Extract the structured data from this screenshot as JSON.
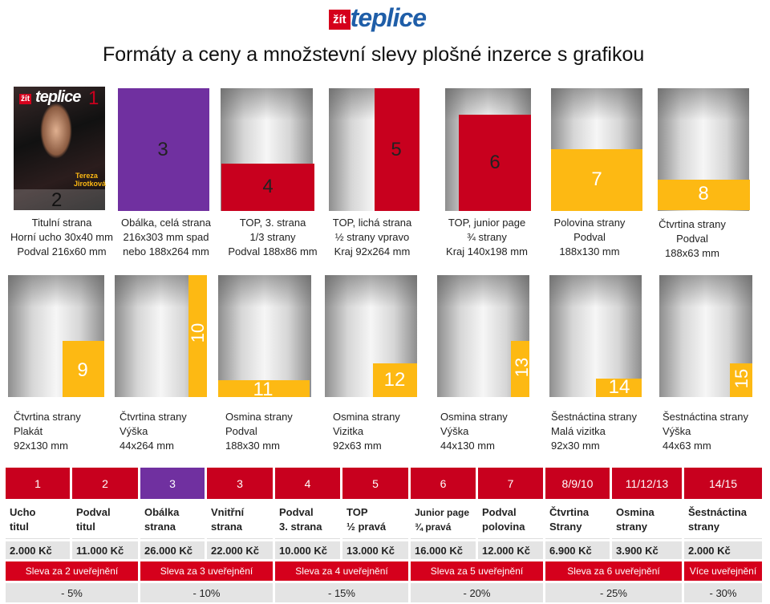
{
  "logo": {
    "brand": "žít",
    "name": "teplice"
  },
  "title": "Formáty a ceny a množstevní slevy plošné inzerce s grafikou",
  "cover": {
    "brand": "žít",
    "name": "teplice",
    "headline": [
      "Tereza",
      "Jirotková"
    ]
  },
  "formats_top": [
    {
      "numbers": [
        "1",
        "2"
      ],
      "caption": [
        "Titulní strana",
        "Horní ucho 30x40 mm",
        "Podval 216x60 mm"
      ]
    },
    {
      "numbers": [
        "3"
      ],
      "caption": [
        "Obálka, celá strana",
        "216x303 mm spad",
        "nebo 188x264 mm"
      ]
    },
    {
      "numbers": [
        "4"
      ],
      "caption": [
        "TOP, 3. strana",
        "1/3 strany",
        "Podval 188x86 mm"
      ]
    },
    {
      "numbers": [
        "5"
      ],
      "caption": [
        "TOP, lichá strana",
        "½ strany vpravo",
        "Kraj 92x264 mm"
      ]
    },
    {
      "numbers": [
        "6"
      ],
      "caption": [
        "TOP, junior page",
        "¾ strany",
        "Kraj 140x198 mm"
      ]
    },
    {
      "numbers": [
        "7"
      ],
      "caption": [
        "Polovina strany",
        "Podval",
        "188x130 mm"
      ]
    },
    {
      "numbers": [
        "8"
      ],
      "caption": [
        "Čtvrtina strany",
        "Podval",
        "188x63 mm"
      ]
    }
  ],
  "formats_bottom": [
    {
      "number": "9",
      "caption": [
        "Čtvrtina strany",
        "Plakát",
        "92x130 mm"
      ]
    },
    {
      "number": "10",
      "caption": [
        "Čtvrtina strany",
        "Výška",
        "44x264 mm"
      ]
    },
    {
      "number": "11",
      "caption": [
        "Osmina strany",
        "Podval",
        "188x30 mm"
      ]
    },
    {
      "number": "12",
      "caption": [
        "Osmina strany",
        "Vizitka",
        "92x63 mm"
      ]
    },
    {
      "number": "13",
      "caption": [
        "Osmina strany",
        "Výška",
        "44x130 mm"
      ]
    },
    {
      "number": "14",
      "caption": [
        "Šestnáctina strany",
        "Malá vizitka",
        "92x30 mm"
      ]
    },
    {
      "number": "15",
      "caption": [
        "Šestnáctina strany",
        "Výška",
        "44x63 mm"
      ]
    }
  ],
  "table": {
    "header": [
      "1",
      "2",
      "3",
      "3",
      "4",
      "5",
      "6",
      "7",
      "8/9/10",
      "11/12/13",
      "14/15"
    ],
    "names": [
      [
        "Ucho",
        "titul"
      ],
      [
        "Podval",
        "titul"
      ],
      [
        "Obálka",
        "strana"
      ],
      [
        "Vnitřní",
        "strana"
      ],
      [
        "Podval",
        "3. strana"
      ],
      [
        "TOP",
        "½ pravá"
      ],
      [
        "Junior page",
        "¾ pravá"
      ],
      [
        "Podval",
        "polovina"
      ],
      [
        "Čtvrtina",
        "Strany"
      ],
      [
        "Osmina",
        "strany"
      ],
      [
        "Šestnáctina",
        "strany"
      ]
    ],
    "prices": [
      "2.000 Kč",
      "11.000  Kč",
      "26.000 Kč",
      "22.000 Kč",
      "10.000 Kč",
      "13.000 Kč",
      "16.000 Kč",
      "12.000 Kč",
      "6.900 Kč",
      "3.900 Kč",
      "2.000 Kč"
    ],
    "discounts": [
      "Sleva za 2 uveřejnění",
      "Sleva za 3 uveřejnění",
      "Sleva za 4 uveřejnění",
      "Sleva za 5 uveřejnění",
      "Sleva za 6 uveřejnění",
      "Více uveřejnění"
    ],
    "percents": [
      "- 5%",
      "- 10%",
      "- 15%",
      "- 20%",
      "- 25%",
      "- 30%"
    ]
  }
}
